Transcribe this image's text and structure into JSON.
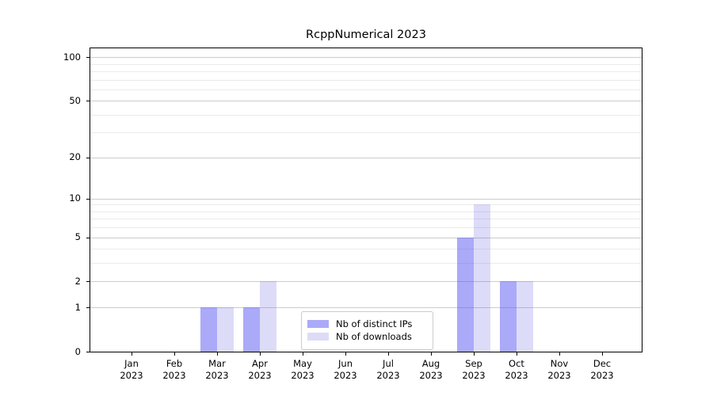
{
  "chart_data": {
    "type": "bar",
    "title": "RcppNumerical 2023",
    "categories": [
      "Jan",
      "Feb",
      "Mar",
      "Apr",
      "May",
      "Jun",
      "Jul",
      "Aug",
      "Sep",
      "Oct",
      "Nov",
      "Dec"
    ],
    "year_label": "2023",
    "series": [
      {
        "name": "Nb of distinct IPs",
        "values": [
          0,
          0,
          1,
          1,
          0,
          0,
          0,
          0,
          5,
          2,
          0,
          0
        ],
        "color": "rgba(85,85,241,0.5)",
        "color_flat": "#aaaaf8"
      },
      {
        "name": "Nb of downloads",
        "values": [
          0,
          0,
          1,
          2,
          0,
          0,
          0,
          0,
          9,
          2,
          0,
          0
        ],
        "color": "rgba(80,80,220,0.2)",
        "color_flat": "#dcdcf8"
      }
    ],
    "yscale": "log1p",
    "ylim": [
      0,
      115
    ],
    "y_major_ticks": [
      0,
      1,
      2,
      5,
      10,
      20,
      50,
      100
    ],
    "y_minor_gridlines": [
      3,
      4,
      6,
      7,
      8,
      9,
      30,
      40,
      60,
      70,
      80,
      90
    ],
    "xlabel": "",
    "ylabel": "",
    "grid": "horizontal",
    "legend_position": "lower center",
    "colors": {
      "grid_major": "#cccccc",
      "grid_minor": "#ebebeb",
      "axis": "#000000",
      "legend_border": "#cccccc",
      "background": "#ffffff"
    }
  }
}
